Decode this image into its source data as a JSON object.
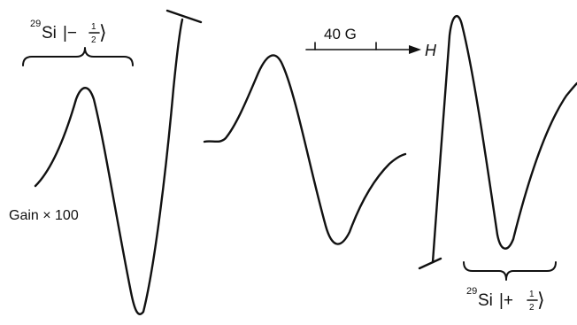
{
  "labels": {
    "si_minus": {
      "superscript": "29",
      "element": "Si",
      "ket_open": "|−",
      "num": "1",
      "den": "2",
      "ket_close": "⟩"
    },
    "si_plus": {
      "superscript": "29",
      "element": "Si",
      "ket_open": "|+",
      "num": "1",
      "den": "2",
      "ket_close": "⟩"
    },
    "gain": "Gain × 100",
    "scale": "40 G",
    "field": "H"
  }
}
